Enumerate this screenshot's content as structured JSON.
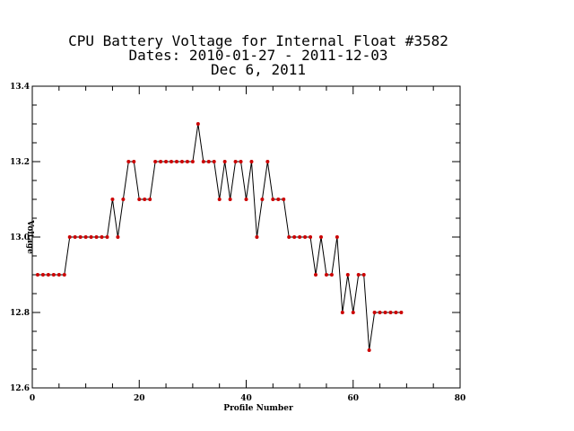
{
  "chart_data": {
    "type": "line",
    "title_lines": [
      "CPU Battery Voltage for Internal Float #3582",
      "Dates:  2010-01-27 -  2011-12-03",
      "Dec  6, 2011"
    ],
    "xlabel": "Profile Number",
    "ylabel": "Voltage",
    "xlim": [
      0,
      80
    ],
    "ylim": [
      12.6,
      13.4
    ],
    "x_ticks": [
      "0",
      "20",
      "40",
      "60",
      "80"
    ],
    "y_ticks": [
      "12.6",
      "12.8",
      "13.0",
      "13.2",
      "13.4"
    ],
    "grid": false,
    "series": [
      {
        "line_color": "#000000",
        "marker_color": "#cc0000",
        "x": [
          1,
          2,
          3,
          4,
          5,
          6,
          7,
          8,
          9,
          10,
          11,
          12,
          13,
          14,
          15,
          16,
          17,
          18,
          19,
          20,
          21,
          22,
          23,
          24,
          25,
          26,
          27,
          28,
          29,
          30,
          31,
          32,
          33,
          34,
          35,
          36,
          37,
          38,
          39,
          40,
          41,
          42,
          43,
          44,
          45,
          46,
          47,
          48,
          49,
          50,
          51,
          52,
          53,
          54,
          55,
          56,
          57,
          58,
          59,
          60,
          61,
          62,
          63,
          64,
          65,
          66,
          67,
          68,
          69
        ],
        "y": [
          12.9,
          12.9,
          12.9,
          12.9,
          12.9,
          12.9,
          13.0,
          13.0,
          13.0,
          13.0,
          13.0,
          13.0,
          13.0,
          13.0,
          13.1,
          13.0,
          13.1,
          13.2,
          13.2,
          13.1,
          13.1,
          13.1,
          13.2,
          13.2,
          13.2,
          13.2,
          13.2,
          13.2,
          13.2,
          13.2,
          13.3,
          13.2,
          13.2,
          13.2,
          13.1,
          13.2,
          13.1,
          13.2,
          13.2,
          13.1,
          13.2,
          13.0,
          13.1,
          13.2,
          13.1,
          13.1,
          13.1,
          13.0,
          13.0,
          13.0,
          13.0,
          13.0,
          12.9,
          13.0,
          12.9,
          12.9,
          13.0,
          12.8,
          12.9,
          12.8,
          12.9,
          12.9,
          12.7,
          12.8,
          12.8,
          12.8,
          12.8,
          12.8,
          12.8
        ]
      }
    ]
  }
}
